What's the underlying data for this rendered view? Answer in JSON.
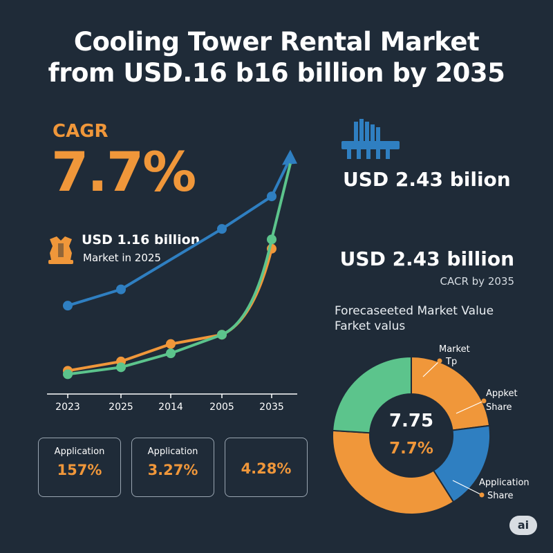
{
  "title": {
    "line1": "Cooling Tower Rental Market",
    "line2": "from USD.16 b16 billion by 2035"
  },
  "cagr": {
    "label": "CAGR",
    "value": "7.7%"
  },
  "market_2025": {
    "value": "USD 1.16 billion",
    "caption": "Market in 2025"
  },
  "value_2035_a": "USD 2.43 bilion",
  "value_2035_b": {
    "value": "USD 2.43 billion",
    "caption": "CACR by 2035"
  },
  "forecast": {
    "title": "Forecaseeted Market Value",
    "subtitle": "Farket valus"
  },
  "cards": [
    {
      "label": "Application",
      "value": "157%"
    },
    {
      "label": "Application",
      "value": "3.27%"
    },
    {
      "label": "",
      "value": "4.28%"
    }
  ],
  "donut_labels": {
    "market_tp": {
      "line1": "Market",
      "line2": "Tp"
    },
    "appket_share": {
      "line1": "Appket",
      "line2": "Share"
    },
    "application_share": {
      "line1": "Application",
      "line2": "Share"
    },
    "center_value": "7.75",
    "center_percent": "7.7%"
  },
  "badge": "ai",
  "colors": {
    "background": "#1f2b38",
    "orange": "#f0973a",
    "blue": "#2f7fc1",
    "green": "#5cc48c"
  },
  "chart_data": [
    {
      "type": "line",
      "categories": [
        "2023",
        "2025",
        "2014",
        "2005",
        "2035"
      ],
      "series": [
        {
          "color": "#2f7fc1",
          "values": [
            1.16,
            1.3,
            null,
            1.82,
            2.1
          ]
        },
        {
          "color": "#f0973a",
          "values": [
            0.6,
            0.68,
            0.83,
            0.91,
            1.65
          ]
        },
        {
          "color": "#5cc48c",
          "values": [
            0.57,
            0.63,
            0.75,
            0.91,
            1.73
          ]
        }
      ],
      "arrow_end": 2.43,
      "ylim": [
        0.4,
        2.6
      ],
      "grid": false
    },
    {
      "type": "pie",
      "donut": true,
      "slices": [
        {
          "color": "#f0973a",
          "value": 23
        },
        {
          "color": "#2f7fc1",
          "value": 18
        },
        {
          "color": "#f0973a",
          "value": 35
        },
        {
          "color": "#5cc48c",
          "value": 24
        }
      ]
    }
  ]
}
